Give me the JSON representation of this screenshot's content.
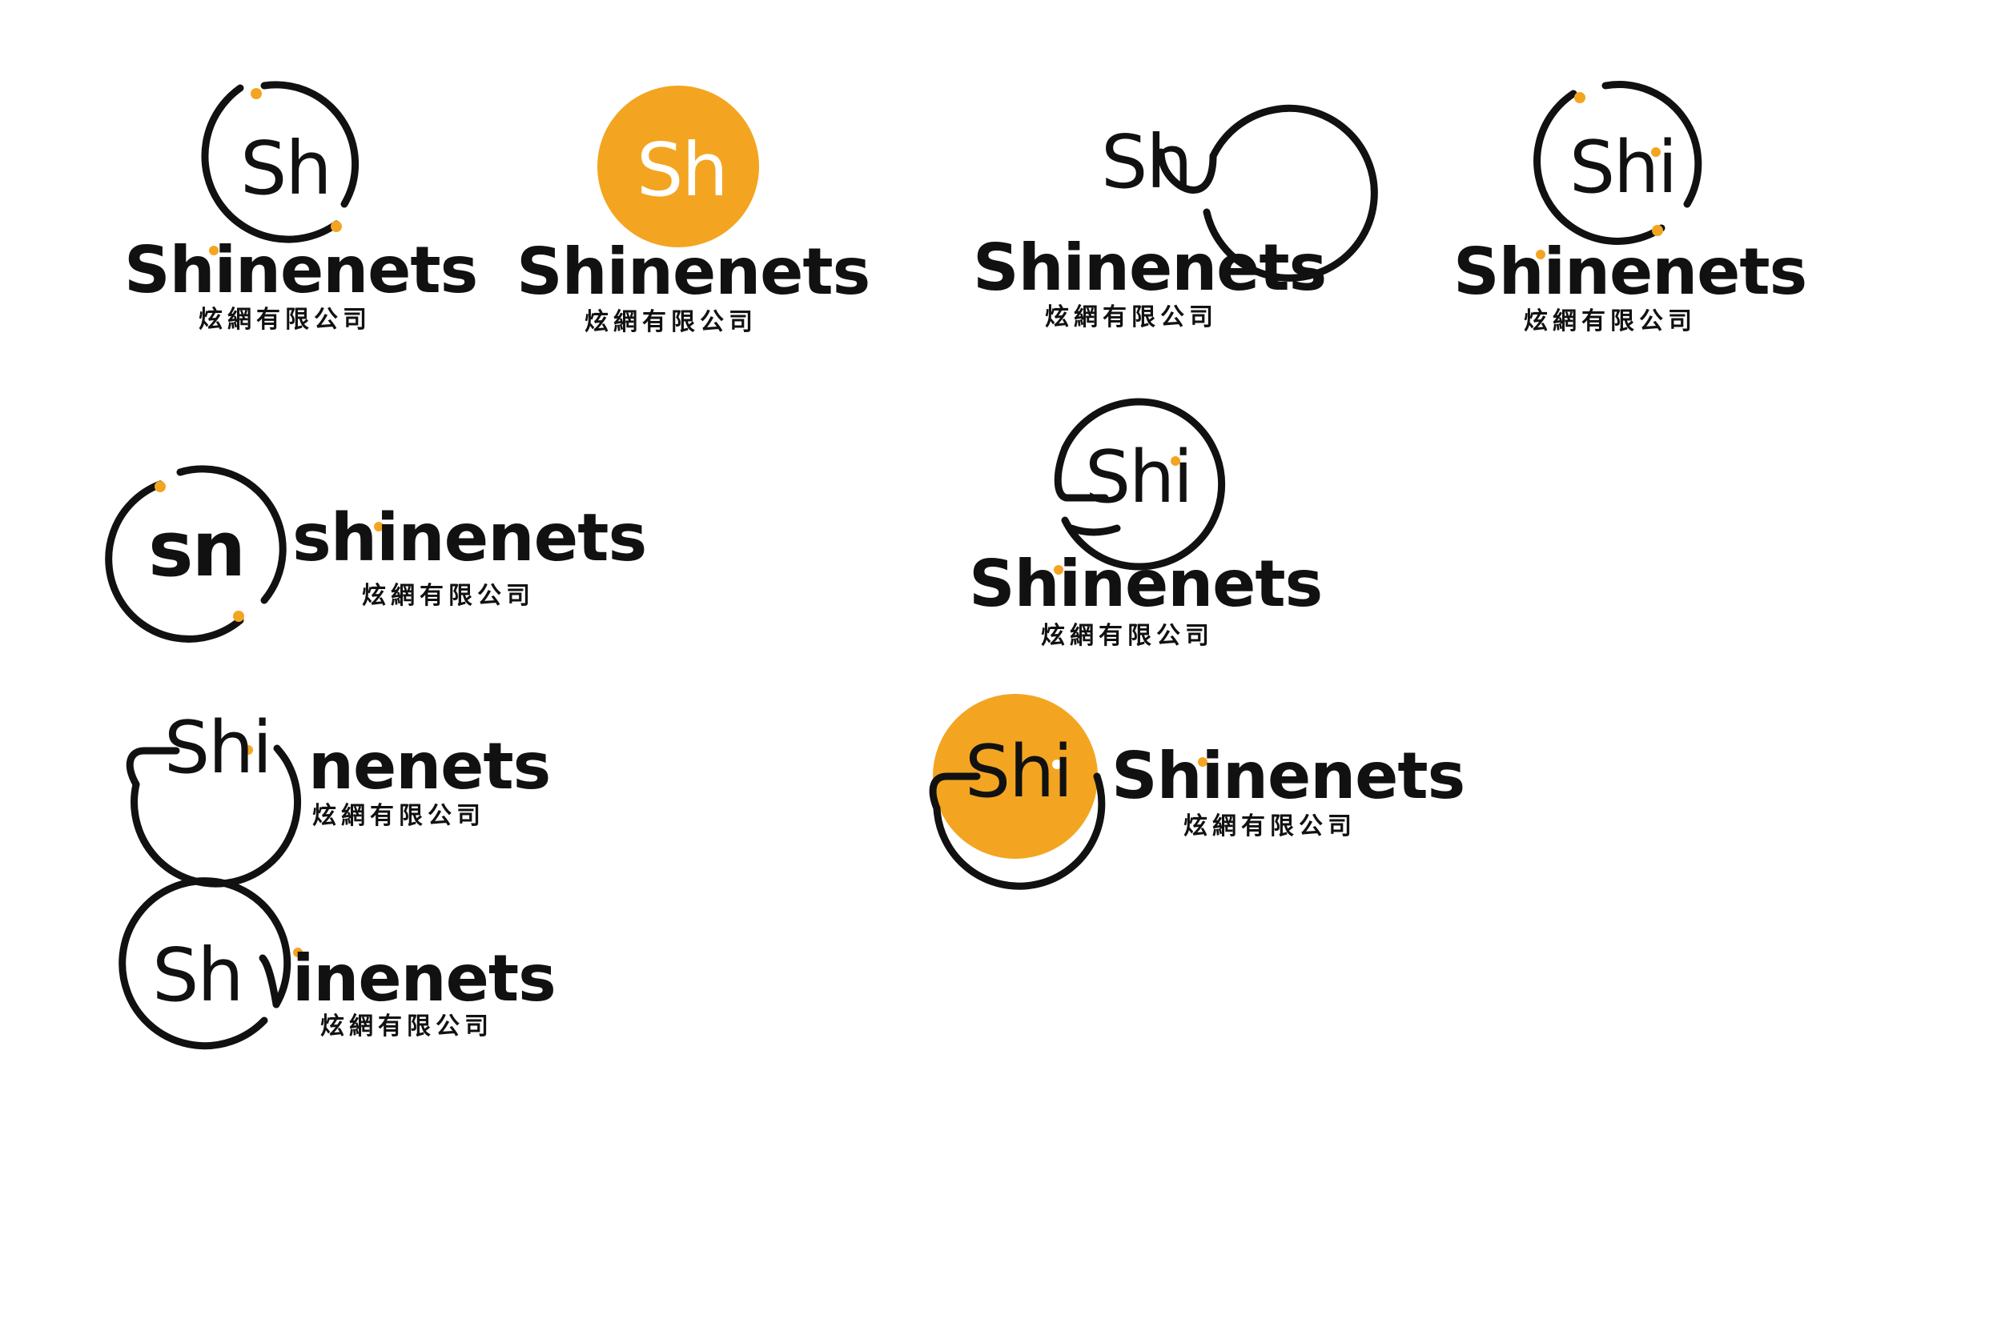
{
  "colors": {
    "ink": "#111111",
    "accent": "#F3A521",
    "paper": "#FFFFFF"
  },
  "logos": [
    {
      "variant": "sh-ring-dots-stacked",
      "monogram": "Sh",
      "wordmark": "Shinenets",
      "subtitle": "炫網有限公司"
    },
    {
      "variant": "sh-orange-disc-stacked",
      "monogram": "Sh",
      "wordmark": "Shinenets",
      "subtitle": "炫網有限公司"
    },
    {
      "variant": "sh-ring-tail-stacked",
      "monogram": "Sh",
      "wordmark": "Shinenets",
      "subtitle": "炫網有限公司"
    },
    {
      "variant": "shi-ring-dots-stacked",
      "monogram": "Shi",
      "wordmark": "Shinenets",
      "subtitle": "炫網有限公司"
    },
    {
      "variant": "sn-ring-dots-horizontal",
      "monogram": "sn",
      "wordmark": "shinenets",
      "subtitle": "炫網有限公司"
    },
    {
      "variant": "shi-ring-loop-stacked",
      "monogram": "Shi",
      "wordmark": "Shinenets",
      "subtitle": "炫網有限公司"
    },
    {
      "variant": "shi-ring-horizontal",
      "monogram": "Shi",
      "wordmark": "nenets",
      "subtitle": "炫網有限公司"
    },
    {
      "variant": "shi-orange-disc-horizontal",
      "monogram": "Shi",
      "wordmark": "Shinenets",
      "subtitle": "炫網有限公司"
    },
    {
      "variant": "sh-ring-horizontal",
      "monogram": "Sh",
      "wordmark": "inenets",
      "subtitle": "炫網有限公司"
    }
  ]
}
